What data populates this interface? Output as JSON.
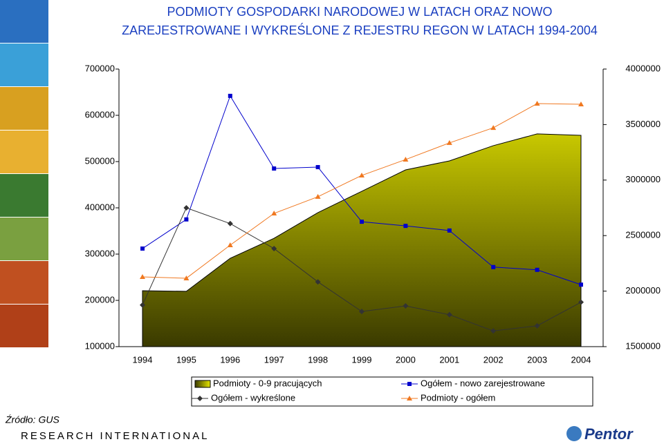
{
  "chart_data": {
    "type": "area-line",
    "title": [
      "PODMIOTY GOSPODARKI NARODOWEJ W LATACH ORAZ NOWO",
      "ZAREJESTROWANE I WYKREŚLONE Z REJESTRU REGON W LATACH 1994-2004"
    ],
    "categories": [
      "1994",
      "1995",
      "1996",
      "1997",
      "1998",
      "1999",
      "2000",
      "2001",
      "2002",
      "2003",
      "2004"
    ],
    "ylim": [
      100000,
      700000
    ],
    "yticks": [
      100000,
      200000,
      300000,
      400000,
      500000,
      600000,
      700000
    ],
    "y2lim": [
      1500000,
      4000000
    ],
    "y2ticks": [
      1500000,
      2000000,
      2500000,
      3000000,
      3500000,
      4000000
    ],
    "series": [
      {
        "name": "Podmioty - 0-9 pracujących",
        "kind": "area",
        "axis": "y2",
        "color": "#9a9a00",
        "values": [
          2004000,
          1998000,
          2296000,
          2476000,
          2707000,
          2899000,
          3092000,
          3173000,
          3310000,
          3416000,
          3403000
        ]
      },
      {
        "name": "Ogółem - nowo zarejestrowane",
        "kind": "line",
        "marker": "square",
        "color": "#0000cc",
        "values": [
          312000,
          375000,
          642000,
          485000,
          488000,
          370000,
          361000,
          351000,
          272000,
          266000,
          234000
        ]
      },
      {
        "name": "Ogółem - wykreślone",
        "kind": "line",
        "marker": "diamond",
        "color": "#333333",
        "values": [
          190000,
          400000,
          366000,
          312000,
          240000,
          176000,
          188000,
          169000,
          134000,
          145000,
          196000
        ]
      },
      {
        "name": "Podmioty - ogółem",
        "kind": "line",
        "marker": "triangle",
        "axis": "y2",
        "color": "#f07820",
        "values": [
          2128000,
          2116000,
          2414000,
          2700000,
          2850000,
          3042000,
          3185000,
          3335000,
          3471000,
          3689000,
          3683000
        ]
      }
    ],
    "source": "Źródło: GUS"
  },
  "branding": {
    "left": "RESEARCH INTERNATIONAL",
    "right": "Pentor"
  }
}
